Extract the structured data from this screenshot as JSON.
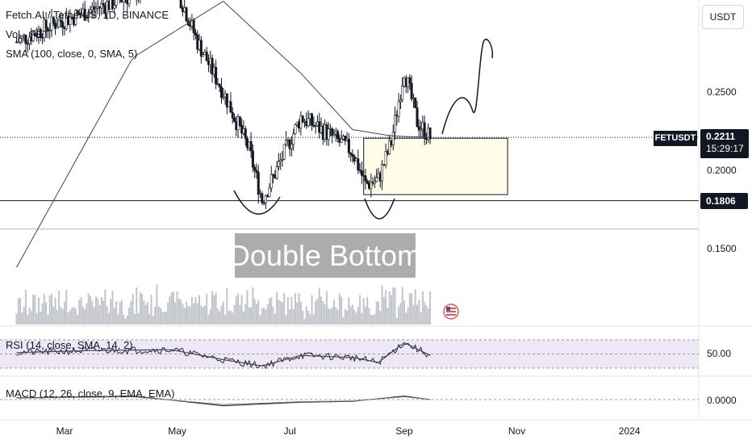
{
  "header": {
    "symbol_line": "Fetch.AI / TetherUS, 1D, BINANCE",
    "vol_line": "Vol · FET",
    "sma_line": "SMA (100, close, 0, SMA, 5)",
    "currency_button": "USDT"
  },
  "badges": {
    "ticker": "FETUSDT",
    "last_price": "0.2211",
    "countdown": "15:29:17",
    "support_level": "0.1806"
  },
  "annotation": {
    "pattern_label": "Double Bottom"
  },
  "indicators": {
    "rsi_label": "RSI (14, close, SMA, 14, 2)",
    "rsi_tick": "50.00",
    "macd_label": "MACD (12, 26, close, 9, EMA, EMA)",
    "macd_tick": "0.0000"
  },
  "colors": {
    "up": "#26a69a",
    "down": "#ef5350",
    "text": "#131722",
    "rsi_band": "#ede7f6",
    "zone_fill": "#fffde7",
    "label_bg": "#9e9e9e"
  },
  "chart_data": {
    "type": "line",
    "x_ticks": [
      "Mar",
      "May",
      "Jul",
      "Sep",
      "Nov",
      "2024"
    ],
    "y_ticks": [
      0.25,
      0.2,
      0.15
    ],
    "y_tick_labels": [
      "0.2500",
      "0.2000",
      "0.1500"
    ],
    "ylim": [
      0.137,
      0.3
    ],
    "series": [
      {
        "name": "",
        "x": [
          "2023-02-03",
          "2023-02-24",
          "2023-03-17",
          "2023-04-07",
          "2023-04-28",
          "2023-05-12",
          "2023-05-26",
          "2023-06-09",
          "2023-06-16",
          "2023-06-23",
          "2023-07-07",
          "2023-07-21",
          "2023-08-04",
          "2023-08-11",
          "2023-08-18",
          "2023-08-25",
          "2023-09-01",
          "2023-09-08",
          "2023-09-15"
        ],
        "values": [
          0.282,
          0.294,
          0.303,
          0.312,
          0.325,
          0.282,
          0.25,
          0.213,
          0.181,
          0.198,
          0.234,
          0.224,
          0.212,
          0.191,
          0.194,
          0.218,
          0.264,
          0.231,
          0.2211
        ]
      },
      {
        "name": "SMA (100, close, 0, SMA, 5)",
        "x": [
          "2023-02-03",
          "2023-04-07",
          "2023-05-26",
          "2023-07-07",
          "2023-08-04",
          "2023-08-25",
          "2023-09-15"
        ],
        "values": [
          0.138,
          0.272,
          0.308,
          0.262,
          0.226,
          0.222,
          0.221
        ]
      }
    ],
    "horizontal_levels": [
      0.2211,
      0.1806,
      0.1625
    ],
    "zone": {
      "x_start": "2023-08-10",
      "x_end": "2023-10-27",
      "y_low": 0.1845,
      "y_high": 0.2205
    },
    "rsi": {
      "label": "RSI (14, close, SMA, 14, 2)",
      "levels": [
        30,
        50,
        70
      ],
      "x": [
        "2023-02-03",
        "2023-03-17",
        "2023-04-28",
        "2023-05-26",
        "2023-06-16",
        "2023-07-07",
        "2023-08-04",
        "2023-08-18",
        "2023-09-01",
        "2023-09-15"
      ],
      "values": [
        52,
        55,
        56,
        42,
        33,
        48,
        45,
        38,
        66,
        48
      ]
    },
    "macd": {
      "label": "MACD (12, 26, close, 9, EMA, EMA)",
      "x": [
        "2023-02-03",
        "2023-04-07",
        "2023-05-26",
        "2023-07-07",
        "2023-08-04",
        "2023-09-01",
        "2023-09-15"
      ],
      "values": [
        0.002,
        0.004,
        -0.007,
        -0.003,
        -0.002,
        0.004,
        0.0
      ]
    }
  }
}
